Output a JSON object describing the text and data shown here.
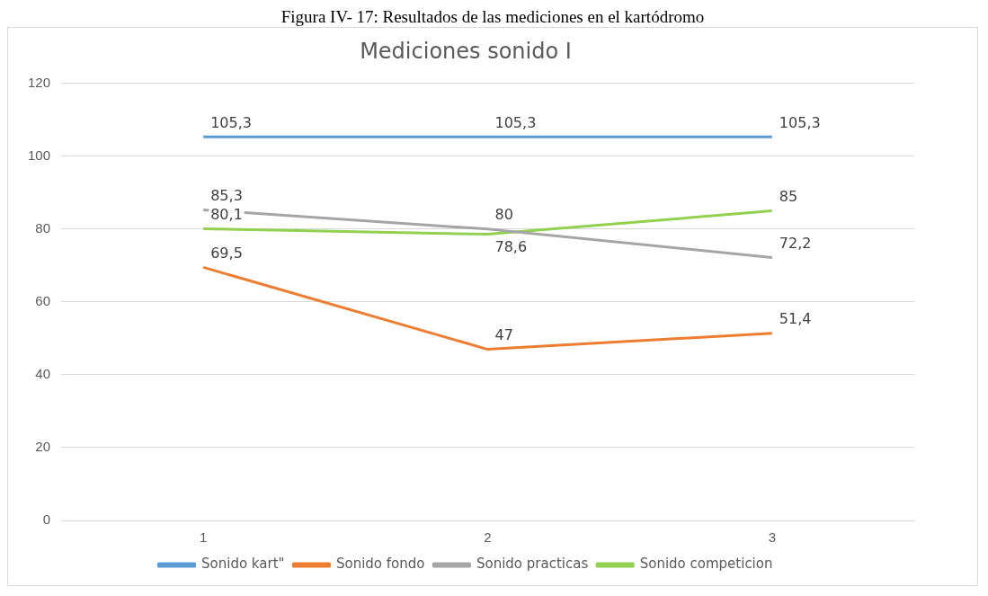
{
  "chart_data": {
    "type": "line",
    "title": "Mediciones sonido I",
    "annotations": [
      "Figura IV- 17: Resultados de las mediciones en el kartódromo"
    ],
    "categories": [
      "1",
      "2",
      "3"
    ],
    "series": [
      {
        "name": "Sonido kart\"",
        "color": "#5b9bd5",
        "values": [
          105.3,
          105.3,
          105.3
        ],
        "value_labels": [
          "105,3",
          "105,3",
          "105,3"
        ]
      },
      {
        "name": "Sonido fondo",
        "color": "#ed7d31",
        "values": [
          69.5,
          47,
          51.4
        ],
        "value_labels": [
          "69,5",
          "47",
          "51,4"
        ]
      },
      {
        "name": "Sonido practicas",
        "color": "#a5a5a5",
        "values": [
          85.3,
          80,
          72.2
        ],
        "value_labels": [
          "85,3",
          "80",
          "72,2"
        ]
      },
      {
        "name": "Sonido competicion",
        "color": "#92d050",
        "values": [
          80.1,
          78.6,
          85
        ],
        "value_labels": [
          "80,1",
          "78,6",
          "85"
        ]
      }
    ],
    "ylim": [
      0,
      120
    ],
    "yticks": [
      0,
      20,
      40,
      60,
      80,
      100,
      120
    ],
    "grid": "y",
    "legend": "bottom",
    "marker": "none",
    "line_style": "solid"
  }
}
